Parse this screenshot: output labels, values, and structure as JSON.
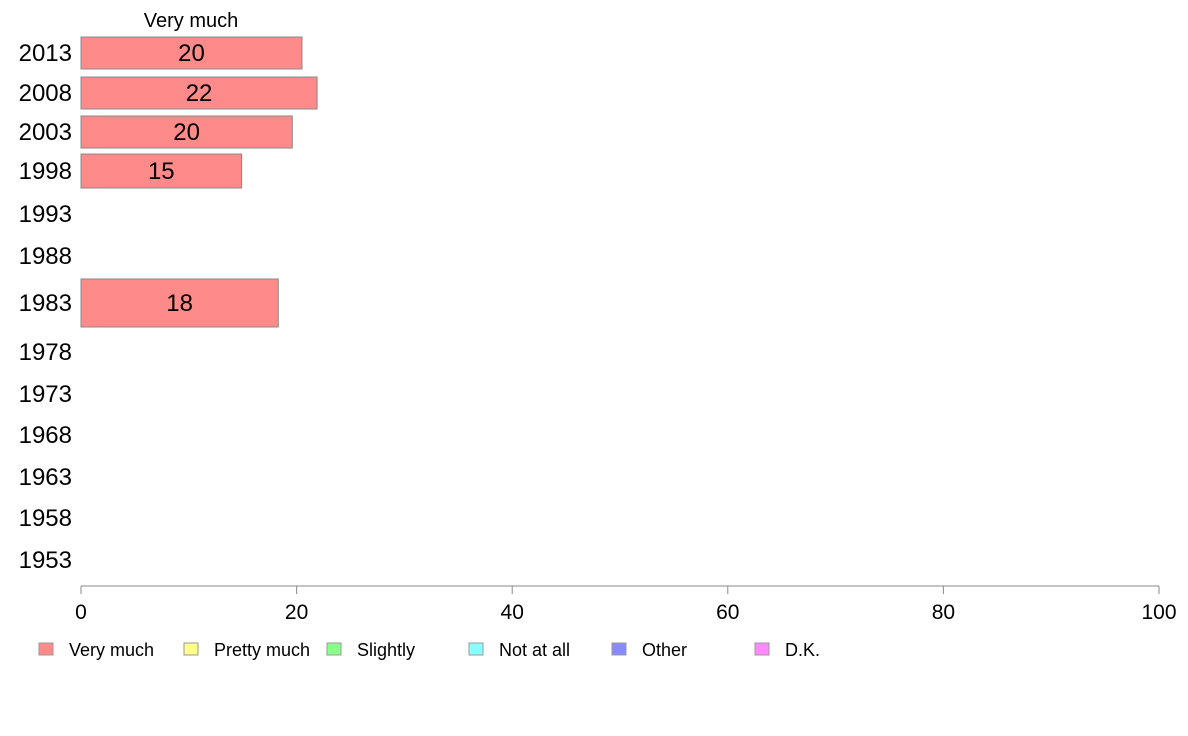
{
  "chart_data": {
    "type": "bar",
    "orientation": "horizontal",
    "title": "Very much",
    "categories": [
      "2013",
      "2008",
      "2003",
      "1998",
      "1993",
      "1988",
      "1983",
      "1978",
      "1973",
      "1968",
      "1963",
      "1958",
      "1953"
    ],
    "series": [
      {
        "name": "Very much",
        "values": [
          20.5,
          21.9,
          19.6,
          14.9,
          null,
          null,
          18.3,
          null,
          null,
          null,
          null,
          null,
          null
        ]
      }
    ],
    "data_labels": [
      "20",
      "22",
      "20",
      "15",
      "",
      "",
      "18",
      "",
      "",
      "",
      "",
      "",
      ""
    ],
    "xlim": [
      0,
      100
    ],
    "xticks": [
      0,
      20,
      40,
      60,
      80,
      100
    ],
    "grid": false,
    "legend": {
      "position": "bottom",
      "entries": [
        {
          "label": "Very much",
          "color": "#ff8a8a"
        },
        {
          "label": "Pretty much",
          "color": "#ffff8a"
        },
        {
          "label": "Slightly",
          "color": "#8aff8a"
        },
        {
          "label": "Not at all",
          "color": "#8affff"
        },
        {
          "label": "Other",
          "color": "#8a8aff"
        },
        {
          "label": "D.K.",
          "color": "#ff8aff"
        }
      ]
    },
    "colors": {
      "bar": "#ff8a8a",
      "bar_stroke": "#888888",
      "axis": "#888888"
    }
  }
}
